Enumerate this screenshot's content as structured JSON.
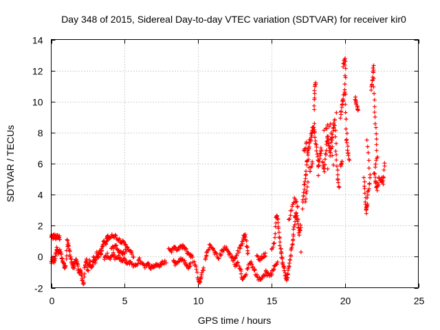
{
  "chart_data": {
    "type": "scatter",
    "title": "Day 348 of 2015, Sidereal Day-to-day VTEC variation (SDTVAR) for receiver kir0",
    "xlabel": "GPS time / hours",
    "ylabel": "SDTVAR / TECUs",
    "xlim": [
      0,
      25
    ],
    "ylim": [
      -2,
      14
    ],
    "x_ticks": [
      0,
      5,
      10,
      15,
      20,
      25
    ],
    "y_ticks": [
      -2,
      0,
      2,
      4,
      6,
      8,
      10,
      12,
      14
    ],
    "grid": true,
    "marker": "+",
    "marker_color": "#ff0000",
    "series": [
      {
        "name": "kir0",
        "trace": [
          [
            0.0,
            1.3
          ],
          [
            0.1,
            1.2
          ],
          [
            0.2,
            1.4
          ],
          [
            0.3,
            1.2
          ],
          [
            0.4,
            1.3
          ],
          [
            0.5,
            1.3
          ],
          [
            0.6,
            1.2
          ],
          [
            0.0,
            -0.3
          ],
          [
            0.1,
            -0.1
          ],
          [
            0.2,
            -0.4
          ],
          [
            0.3,
            0.1
          ],
          [
            0.4,
            0.5
          ],
          [
            0.5,
            0.2
          ],
          [
            0.6,
            0.4
          ],
          [
            0.7,
            0.0
          ],
          [
            0.8,
            -0.3
          ],
          [
            0.9,
            -0.7
          ],
          [
            1.0,
            -0.5
          ],
          [
            1.1,
            1.0
          ],
          [
            1.2,
            0.6
          ],
          [
            1.3,
            0.1
          ],
          [
            1.4,
            -0.4
          ],
          [
            1.5,
            -0.7
          ],
          [
            1.6,
            -0.5
          ],
          [
            1.7,
            -0.2
          ],
          [
            1.8,
            -0.6
          ],
          [
            1.9,
            -1.1
          ],
          [
            2.0,
            -0.8
          ],
          [
            2.1,
            -1.4
          ],
          [
            2.2,
            -1.8
          ],
          [
            2.3,
            -0.6
          ],
          [
            2.4,
            -0.2
          ],
          [
            2.5,
            -0.9
          ],
          [
            2.6,
            -0.3
          ],
          [
            2.7,
            -0.7
          ],
          [
            2.8,
            -0.5
          ],
          [
            2.9,
            -0.1
          ],
          [
            3.0,
            -0.3
          ],
          [
            3.1,
            0.2
          ],
          [
            3.2,
            -0.1
          ],
          [
            3.3,
            0.4
          ],
          [
            3.4,
            0.2
          ],
          [
            3.5,
            0.7
          ],
          [
            3.6,
            1.0
          ],
          [
            3.7,
            0.8
          ],
          [
            3.8,
            1.2
          ],
          [
            3.9,
            1.3
          ],
          [
            4.0,
            1.2
          ],
          [
            4.2,
            1.4
          ],
          [
            4.4,
            1.3
          ],
          [
            4.6,
            1.1
          ],
          [
            4.8,
            1.0
          ],
          [
            5.0,
            0.8
          ],
          [
            5.2,
            0.6
          ],
          [
            5.4,
            0.3
          ],
          [
            5.6,
            0.0
          ],
          [
            3.6,
            -0.2
          ],
          [
            3.8,
            0.1
          ],
          [
            4.0,
            -0.1
          ],
          [
            4.2,
            0.2
          ],
          [
            4.4,
            -0.2
          ],
          [
            4.6,
            0.0
          ],
          [
            4.8,
            -0.3
          ],
          [
            5.0,
            -0.2
          ],
          [
            5.2,
            -0.5
          ],
          [
            5.4,
            -0.3
          ],
          [
            5.6,
            -0.6
          ],
          [
            5.8,
            -0.5
          ],
          [
            6.0,
            -0.2
          ],
          [
            6.2,
            -0.4
          ],
          [
            6.4,
            -0.6
          ],
          [
            6.6,
            -0.5
          ],
          [
            6.8,
            -0.7
          ],
          [
            7.0,
            -0.6
          ],
          [
            7.2,
            -0.5
          ],
          [
            7.4,
            -0.6
          ],
          [
            7.6,
            -0.4
          ],
          [
            7.8,
            -0.3
          ],
          [
            4.1,
            0.5
          ],
          [
            4.3,
            0.7
          ],
          [
            4.5,
            0.6
          ],
          [
            4.7,
            0.3
          ],
          [
            4.9,
            0.2
          ],
          [
            5.1,
            0.4
          ],
          [
            8.0,
            0.5
          ],
          [
            8.2,
            0.4
          ],
          [
            8.4,
            0.6
          ],
          [
            8.6,
            0.5
          ],
          [
            8.8,
            0.6
          ],
          [
            9.0,
            0.7
          ],
          [
            9.2,
            0.4
          ],
          [
            9.4,
            0.2
          ],
          [
            9.6,
            0.0
          ],
          [
            9.8,
            -0.6
          ],
          [
            10.0,
            -1.4
          ],
          [
            10.1,
            -1.7
          ],
          [
            10.2,
            -1.3
          ],
          [
            10.4,
            -0.8
          ],
          [
            8.3,
            -0.2
          ],
          [
            8.5,
            -0.5
          ],
          [
            8.7,
            -0.3
          ],
          [
            8.9,
            -0.1
          ],
          [
            9.1,
            -0.4
          ],
          [
            9.3,
            -0.7
          ],
          [
            9.5,
            -0.5
          ],
          [
            10.5,
            -0.2
          ],
          [
            10.6,
            0.3
          ],
          [
            10.8,
            0.7
          ],
          [
            11.0,
            0.5
          ],
          [
            11.2,
            0.2
          ],
          [
            11.4,
            -0.1
          ],
          [
            11.6,
            0.3
          ],
          [
            11.8,
            0.6
          ],
          [
            12.0,
            0.4
          ],
          [
            12.2,
            0.1
          ],
          [
            12.4,
            -0.2
          ],
          [
            12.6,
            0.0
          ],
          [
            12.8,
            0.5
          ],
          [
            13.0,
            0.9
          ],
          [
            13.1,
            1.2
          ],
          [
            13.2,
            1.5
          ],
          [
            13.3,
            0.8
          ],
          [
            13.4,
            0.2
          ],
          [
            12.5,
            -0.6
          ],
          [
            12.7,
            -0.4
          ],
          [
            12.9,
            -0.8
          ],
          [
            13.0,
            -1.5
          ],
          [
            13.2,
            -1.3
          ],
          [
            13.4,
            -0.6
          ],
          [
            13.6,
            -0.3
          ],
          [
            13.8,
            -0.8
          ],
          [
            14.0,
            -1.2
          ],
          [
            14.2,
            -1.5
          ],
          [
            14.4,
            -1.3
          ],
          [
            14.6,
            -1.0
          ],
          [
            14.8,
            -1.2
          ],
          [
            15.0,
            -1.1
          ],
          [
            15.2,
            -0.7
          ],
          [
            15.4,
            -0.3
          ],
          [
            14.0,
            0.1
          ],
          [
            14.2,
            -0.2
          ],
          [
            14.4,
            0.0
          ],
          [
            14.6,
            0.2
          ],
          [
            15.0,
            0.5
          ],
          [
            15.2,
            1.0
          ],
          [
            15.3,
            2.5
          ],
          [
            15.4,
            2.6
          ],
          [
            15.5,
            1.5
          ],
          [
            15.6,
            0.6
          ],
          [
            15.7,
            0.0
          ],
          [
            15.8,
            -0.5
          ],
          [
            15.9,
            -1.0
          ],
          [
            16.0,
            -1.6
          ],
          [
            16.1,
            -1.2
          ],
          [
            16.2,
            -0.6
          ],
          [
            16.3,
            0.0
          ],
          [
            16.4,
            0.8
          ],
          [
            16.5,
            1.5
          ],
          [
            16.6,
            2.5
          ],
          [
            16.7,
            2.8
          ],
          [
            16.8,
            2.2
          ],
          [
            16.9,
            1.5
          ],
          [
            17.0,
            2.0
          ],
          [
            16.2,
            2.3
          ],
          [
            16.4,
            3.3
          ],
          [
            16.6,
            3.8
          ],
          [
            16.8,
            3.2
          ],
          [
            17.0,
            0.2
          ],
          [
            17.1,
            3.2
          ],
          [
            17.2,
            4.2
          ],
          [
            17.3,
            5.0
          ],
          [
            17.4,
            6.0
          ],
          [
            17.5,
            6.8
          ],
          [
            17.6,
            7.4
          ],
          [
            17.7,
            7.8
          ],
          [
            17.8,
            8.2
          ],
          [
            17.9,
            8.5
          ],
          [
            18.0,
            7.5
          ],
          [
            18.1,
            6.6
          ],
          [
            18.2,
            5.8
          ],
          [
            18.3,
            6.5
          ],
          [
            18.4,
            7.0
          ],
          [
            17.2,
            6.8
          ],
          [
            17.4,
            7.3
          ],
          [
            17.6,
            5.5
          ],
          [
            17.8,
            6.0
          ],
          [
            17.9,
            9.6
          ],
          [
            17.95,
            10.8
          ],
          [
            18.0,
            11.2
          ],
          [
            18.5,
            6.2
          ],
          [
            18.6,
            5.5
          ],
          [
            18.7,
            6.7
          ],
          [
            18.8,
            7.8
          ],
          [
            18.9,
            7.2
          ],
          [
            19.0,
            6.5
          ],
          [
            19.1,
            7.5
          ],
          [
            19.2,
            8.2
          ],
          [
            19.3,
            8.9
          ],
          [
            19.4,
            6.8
          ],
          [
            19.5,
            5.2
          ],
          [
            19.6,
            4.5
          ],
          [
            19.7,
            9.0
          ],
          [
            19.8,
            9.8
          ],
          [
            19.9,
            10.2
          ],
          [
            20.0,
            11.0
          ],
          [
            20.1,
            8.2
          ],
          [
            20.2,
            6.8
          ],
          [
            20.3,
            6.2
          ],
          [
            19.9,
            12.3
          ],
          [
            20.0,
            12.8
          ],
          [
            20.05,
            11.5
          ],
          [
            20.1,
            7.4
          ],
          [
            19.7,
            5.8
          ],
          [
            19.8,
            6.2
          ],
          [
            20.7,
            10.2
          ],
          [
            20.8,
            9.8
          ],
          [
            20.9,
            9.5
          ],
          [
            21.3,
            5.2
          ],
          [
            21.4,
            3.8
          ],
          [
            21.45,
            2.9
          ],
          [
            21.5,
            3.3
          ],
          [
            21.6,
            4.3
          ],
          [
            21.7,
            5.2
          ],
          [
            21.5,
            7.5
          ],
          [
            21.8,
            10.8
          ],
          [
            21.9,
            11.4
          ],
          [
            21.95,
            12.4
          ],
          [
            22.0,
            10.0
          ],
          [
            22.1,
            8.2
          ],
          [
            22.2,
            6.5
          ],
          [
            22.0,
            5.5
          ],
          [
            22.1,
            4.8
          ],
          [
            22.2,
            4.3
          ],
          [
            22.3,
            5.0
          ],
          [
            22.5,
            5.0
          ],
          [
            22.6,
            4.7
          ],
          [
            22.7,
            6.0
          ],
          [
            18.2,
            5.2
          ],
          [
            18.6,
            8.1
          ],
          [
            19.0,
            8.6
          ],
          [
            19.2,
            5.9
          ],
          [
            19.4,
            9.3
          ],
          [
            18.8,
            5.7
          ],
          [
            17.5,
            4.7
          ],
          [
            17.3,
            3.5
          ]
        ]
      }
    ]
  }
}
